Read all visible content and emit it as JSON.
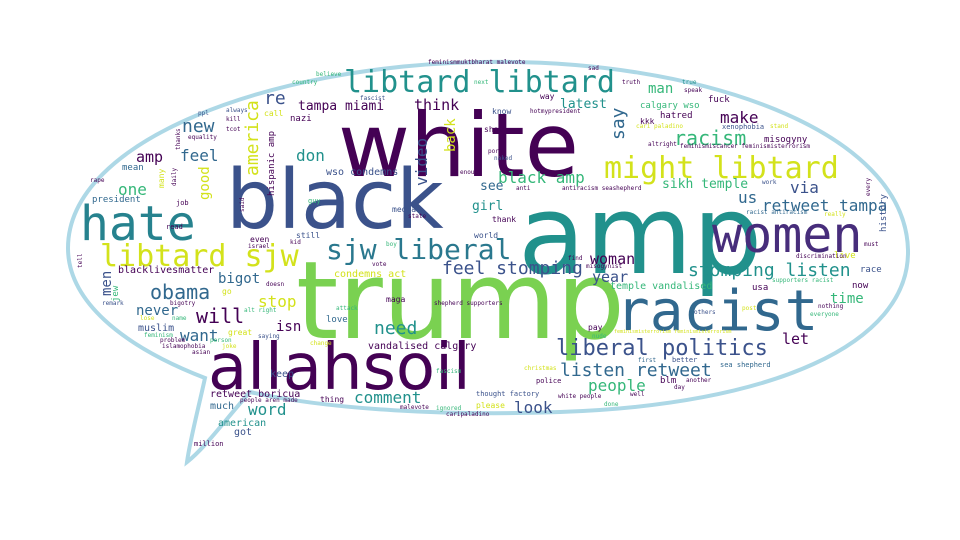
{
  "palette": {
    "dark_purple": "#440154",
    "indigo": "#3b528b",
    "blue": "#31688e",
    "teal": "#21918c",
    "green": "#35b779",
    "lime": "#7ad151",
    "yellow": "#d3e21b",
    "bubble_outline": "#add8e6"
  },
  "words": {
    "amp": "amp",
    "trump": "trump",
    "white": "white",
    "black": "black",
    "allahsoil": "allahsoil",
    "racist": "racist",
    "women": "women",
    "hate": "hate",
    "might_libtard": "might libtard",
    "libtard_libtard": "libtard libtard",
    "libtard_sjw": "libtard sjw",
    "sjw_liberal": "sjw liberal",
    "liberal_politics": "liberal politics",
    "listen_retweet": "listen retweet",
    "stomping_listen": "stomping listen",
    "feel_stomping": "feel stomping",
    "retweet_tampa": "retweet tampa",
    "obama": "obama",
    "america": "america",
    "video": "video",
    "racism": "racism",
    "black_amp": "black amp",
    "sikh_temple": "sikh temple",
    "tampa_miami": "tampa miami",
    "people": "people",
    "comment": "comment",
    "word": "word",
    "look": "look",
    "will": "will",
    "need": "need",
    "bigot": "bigot",
    "stop": "stop",
    "want": "want",
    "new": "new",
    "feel": "feel",
    "one": "one",
    "amp_small": "amp",
    "re": "re",
    "don": "don",
    "think": "think",
    "make": "make",
    "via": "via",
    "us": "us",
    "say": "say",
    "woman": "woman",
    "year": "year",
    "time": "time",
    "let": "let",
    "never": "never",
    "isn": "isn",
    "good": "good",
    "men": "men",
    "man": "man",
    "latest": "latest",
    "back": "back",
    "girl": "girl",
    "see": "see",
    "thank": "thank",
    "wso_condemns": "wso condemns",
    "condemns_act": "condemns act",
    "vandalised_calgary": "vandalised calgary",
    "temple_vandalised": "temple vandalised",
    "retweet_boricua": "retweet boricua",
    "keep": "keep",
    "much": "much",
    "american": "american",
    "got": "got",
    "million": "million",
    "muslim": "muslim",
    "blacklivesmatter": "blacklivesmatter",
    "president": "president",
    "mean": "mean",
    "jew": "jew",
    "hispanic_amp": "hispanic amp",
    "nazi": "nazi",
    "calgary_wso": "calgary wso",
    "hatred": "hatred",
    "fuck": "fuck",
    "kkk": "kkk",
    "misogyny": "misogyny",
    "xenophobia": "xenophobia",
    "usa": "usa",
    "blm": "blm",
    "now": "now",
    "race": "race",
    "live": "live",
    "history": "history",
    "discrimination": "discrimination",
    "racist_antiracism": "racist antiracism",
    "supporters_racist": "supporters racist",
    "everyone": "everyone",
    "nothing": "nothing",
    "sea_shepherd": "sea shepherd",
    "another": "another",
    "day": "day",
    "better": "better",
    "first": "first",
    "police": "police",
    "christmas": "christmas",
    "pay": "pay",
    "nude": "nude",
    "white_people": "white people",
    "done": "done",
    "well": "well",
    "please": "please",
    "thought_factory": "thought factory",
    "fascism": "fascism",
    "ignored": "ignored",
    "caripaladino": "caripaladino",
    "malevote": "malevote",
    "thing": "thing",
    "love": "love",
    "maga": "maga",
    "vote": "vote",
    "attack": "attack",
    "shepherd_supporters": "shepherd supporters",
    "media": "media",
    "state": "state",
    "world": "world",
    "find": "find",
    "misogynist": "misogynist",
    "even": "even",
    "still": "still",
    "guy": "guy",
    "boy": "boy",
    "read": "read",
    "job": "job",
    "rape": "rape",
    "tell": "tell",
    "equality": "equality",
    "kill": "kill",
    "always": "always",
    "ppl": "ppl",
    "call": "call",
    "country": "country",
    "believe": "believe",
    "next": "next",
    "fascist": "fascist",
    "know": "know",
    "way": "way",
    "sad": "sad",
    "truth": "truth",
    "show": "show",
    "porn": "porn",
    "naked": "naked",
    "enough": "enough",
    "anti": "anti",
    "antiracism_seashepherd": "antiracism seashepherd",
    "stand": "stand",
    "work": "work",
    "really": "really",
    "every": "every",
    "must": "must",
    "speak": "speak",
    "true": "true",
    "altright": "altright",
    "post": "post",
    "others": "others",
    "asian": "asian",
    "islamophobia": "islamophobia",
    "problem": "problem",
    "feminism": "feminism",
    "saying": "saying",
    "change": "change",
    "person": "person",
    "joke": "joke",
    "great": "great",
    "alt_right": "alt right",
    "people_aren_made": "people aren made",
    "doesn": "doesn",
    "kid": "kid",
    "israel": "israel",
    "said": "said",
    "daily": "daily",
    "thanks": "thanks",
    "many": "many",
    "tcot": "tcot",
    "feminismmuktbharat_malevote": "feminismmuktbharat malevote",
    "feminismiscancer_feminismisterrorism": "feminismiscancer feminismisterrorism",
    "hotmypresident": "hotmypresident",
    "cari_paladino": "cari paladino",
    "remark": "remark",
    "bigotry": "bigotry",
    "go": "go",
    "lose": "lose",
    "name": "name",
    "feminismisterrorism_feminismisterrorism": "feminismisterrorism feminismisterrorism"
  }
}
